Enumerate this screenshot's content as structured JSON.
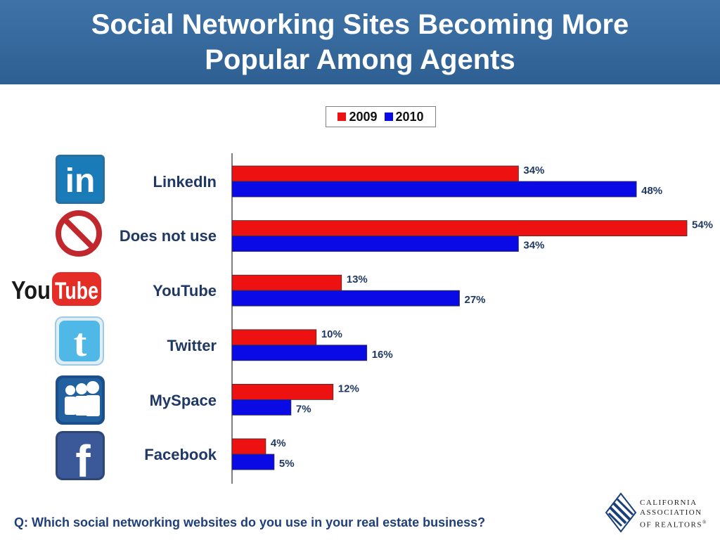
{
  "title": {
    "line1": "Social Networking Sites Becoming More",
    "line2": "Popular Among Agents"
  },
  "question": "Q: Which social networking websites do you use in your real estate business?",
  "logo": {
    "line1": "CALIFORNIA",
    "line2": "ASSOCIATION",
    "line3": "OF REALTORS",
    "mark": "®"
  },
  "icons": {
    "linkedin": {
      "name": "linkedin-icon",
      "text": "in",
      "color": "#1a7bb9"
    },
    "does_not_use": {
      "name": "prohibited-icon",
      "color": "#c0282d"
    },
    "youtube": {
      "name": "youtube-icon",
      "text_you": "You",
      "text_tube": "Tube",
      "color": "#e52d27"
    },
    "twitter": {
      "name": "twitter-icon",
      "text": "t",
      "color": "#4fb8e6"
    },
    "myspace": {
      "name": "myspace-icon",
      "color": "#1b4f8c"
    },
    "facebook": {
      "name": "facebook-icon",
      "text": "f",
      "color": "#3b5998"
    }
  },
  "chart_data": {
    "type": "bar",
    "orientation": "horizontal",
    "categories": [
      "LinkedIn",
      "Does not use",
      "YouTube",
      "Twitter",
      "MySpace",
      "Facebook"
    ],
    "series": [
      {
        "name": "2009",
        "color": "#ee1111",
        "values": [
          34,
          54,
          13,
          10,
          12,
          4
        ]
      },
      {
        "name": "2010",
        "color": "#0a0ae6",
        "values": [
          48,
          34,
          27,
          16,
          7,
          5
        ]
      }
    ],
    "value_suffix": "%",
    "xlim": [
      0,
      54
    ],
    "grid": false,
    "legend": "top-center"
  }
}
